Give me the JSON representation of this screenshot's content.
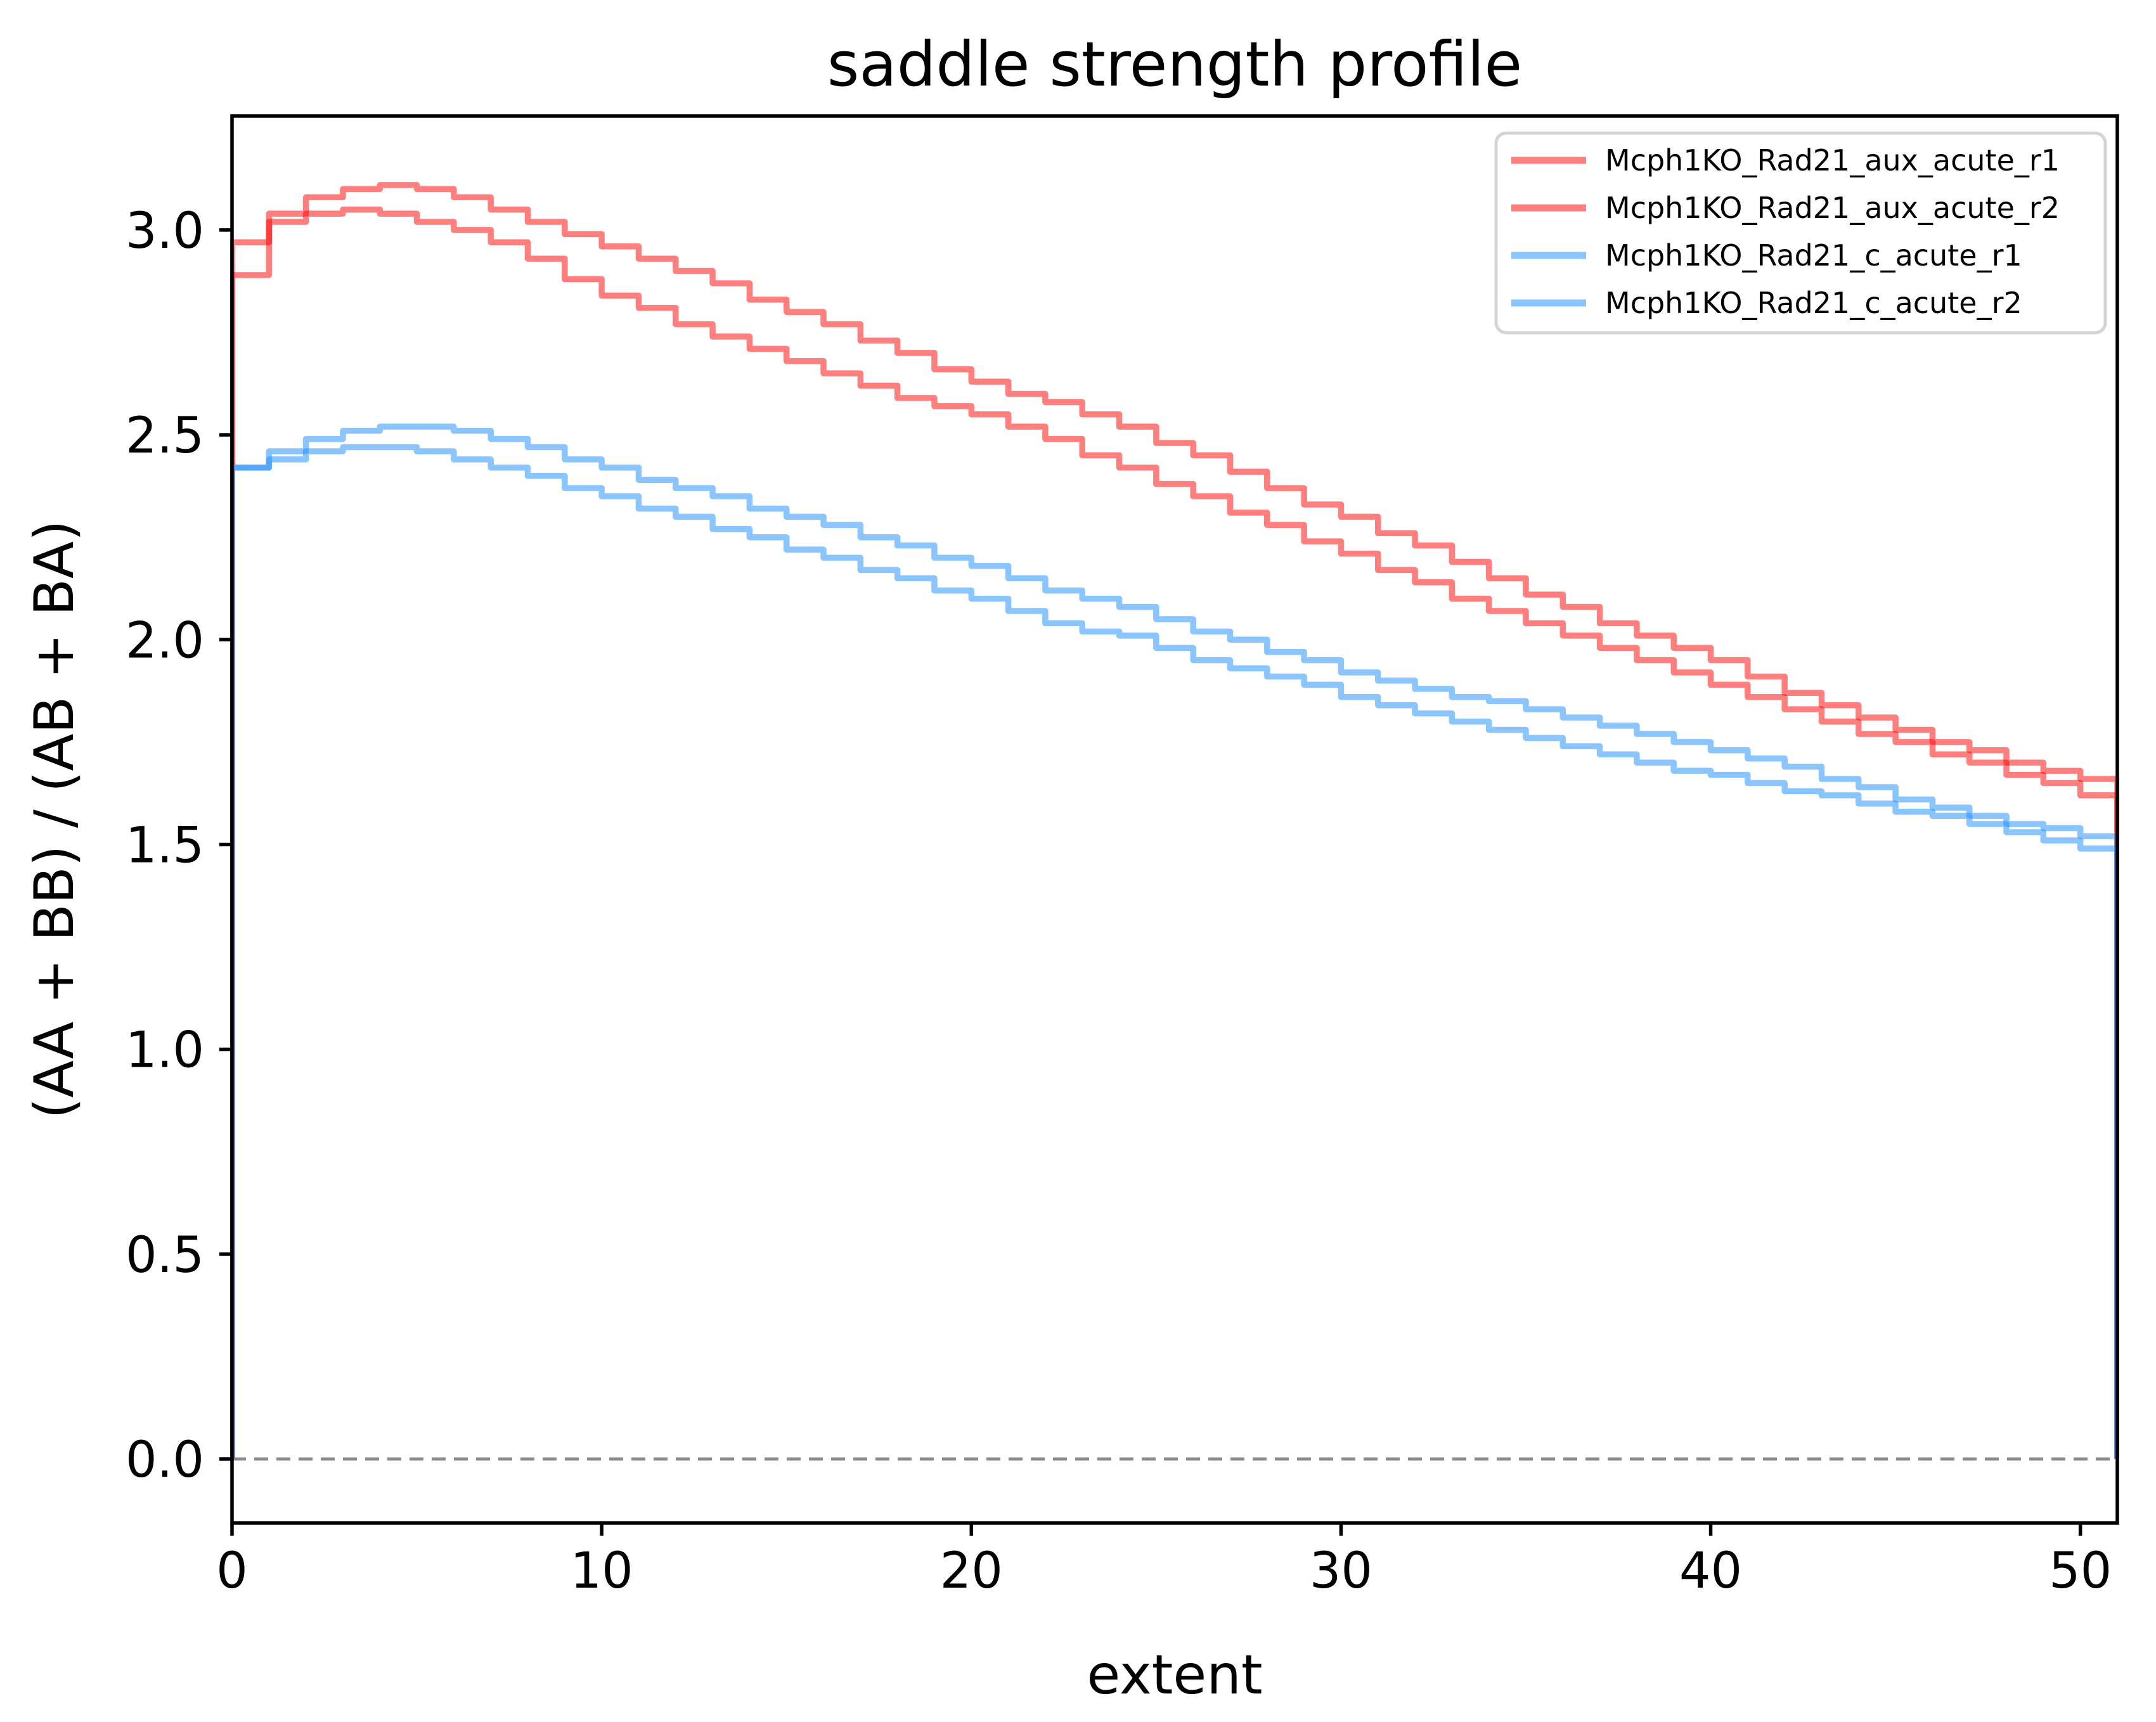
{
  "title": "saddle strength profile",
  "xlabel": "extent",
  "ylabel": "(AA + BB) / (AB + BA)",
  "colors": {
    "aux_red": "#FF0000",
    "aux_red_opacity": 0.5,
    "control_blue": "#1E90FF",
    "control_blue_opacity": 0.52,
    "zero_line_gray": "#8C8C8C",
    "legend_border": "#D4D4D4",
    "axis_black": "#000000"
  },
  "legend": {
    "entries": [
      {
        "label": "Mcph1KO_Rad21_aux_acute_r1",
        "color": "#FF0000",
        "opacity": 0.5
      },
      {
        "label": "Mcph1KO_Rad21_aux_acute_r2",
        "color": "#FF0000",
        "opacity": 0.5
      },
      {
        "label": "Mcph1KO_Rad21_c_acute_r1",
        "color": "#1E90FF",
        "opacity": 0.52
      },
      {
        "label": "Mcph1KO_Rad21_c_acute_r2",
        "color": "#1E90FF",
        "opacity": 0.52
      }
    ]
  },
  "chart_data": {
    "type": "line",
    "subtype": "step-post-histogram",
    "title": "saddle strength profile",
    "xlabel": "extent",
    "ylabel": "(AA + BB) / (AB + BA)",
    "xlim": [
      0,
      51
    ],
    "ylim": [
      -0.156,
      3.278
    ],
    "bin_width": 1,
    "grid": false,
    "legend_position": "upper right",
    "baseline": 0,
    "zero_line": {
      "y": 0,
      "style": "dashed",
      "color": "#8C8C8C"
    },
    "x_ticks": [
      0,
      10,
      20,
      30,
      40,
      50
    ],
    "y_ticks": [
      "0.0",
      "0.5",
      "1.0",
      "1.5",
      "2.0",
      "2.5",
      "3.0"
    ],
    "x": [
      0,
      1,
      2,
      3,
      4,
      5,
      6,
      7,
      8,
      9,
      10,
      11,
      12,
      13,
      14,
      15,
      16,
      17,
      18,
      19,
      20,
      21,
      22,
      23,
      24,
      25,
      26,
      27,
      28,
      29,
      30,
      31,
      32,
      33,
      34,
      35,
      36,
      37,
      38,
      39,
      40,
      41,
      42,
      43,
      44,
      45,
      46,
      47,
      48,
      49,
      50
    ],
    "series": [
      {
        "name": "Mcph1KO_Rad21_aux_acute_r1",
        "color": "#FF0000",
        "opacity": 0.5,
        "values": [
          2.97,
          3.04,
          3.08,
          3.1,
          3.11,
          3.1,
          3.08,
          3.05,
          3.02,
          2.99,
          2.96,
          2.93,
          2.9,
          2.87,
          2.83,
          2.8,
          2.77,
          2.73,
          2.7,
          2.66,
          2.63,
          2.6,
          2.58,
          2.55,
          2.52,
          2.48,
          2.45,
          2.41,
          2.37,
          2.33,
          2.3,
          2.26,
          2.23,
          2.19,
          2.15,
          2.11,
          2.08,
          2.04,
          2.01,
          1.98,
          1.95,
          1.91,
          1.87,
          1.84,
          1.81,
          1.78,
          1.75,
          1.73,
          1.7,
          1.68,
          1.66
        ]
      },
      {
        "name": "Mcph1KO_Rad21_aux_acute_r2",
        "color": "#FF0000",
        "opacity": 0.5,
        "values": [
          2.89,
          3.02,
          3.04,
          3.05,
          3.04,
          3.02,
          3.0,
          2.97,
          2.93,
          2.88,
          2.84,
          2.81,
          2.77,
          2.74,
          2.71,
          2.68,
          2.65,
          2.62,
          2.59,
          2.57,
          2.55,
          2.52,
          2.49,
          2.45,
          2.42,
          2.38,
          2.35,
          2.31,
          2.28,
          2.24,
          2.21,
          2.17,
          2.14,
          2.1,
          2.07,
          2.04,
          2.01,
          1.98,
          1.95,
          1.92,
          1.89,
          1.86,
          1.83,
          1.8,
          1.77,
          1.75,
          1.72,
          1.7,
          1.67,
          1.65,
          1.62
        ]
      },
      {
        "name": "Mcph1KO_Rad21_c_acute_r1",
        "color": "#1E90FF",
        "opacity": 0.52,
        "values": [
          2.42,
          2.46,
          2.49,
          2.51,
          2.52,
          2.52,
          2.51,
          2.49,
          2.47,
          2.44,
          2.42,
          2.39,
          2.37,
          2.35,
          2.32,
          2.3,
          2.28,
          2.25,
          2.23,
          2.2,
          2.18,
          2.15,
          2.12,
          2.1,
          2.08,
          2.05,
          2.02,
          2.0,
          1.97,
          1.95,
          1.92,
          1.9,
          1.88,
          1.86,
          1.85,
          1.83,
          1.81,
          1.79,
          1.77,
          1.75,
          1.73,
          1.71,
          1.69,
          1.66,
          1.64,
          1.61,
          1.59,
          1.57,
          1.55,
          1.54,
          1.52
        ]
      },
      {
        "name": "Mcph1KO_Rad21_c_acute_r2",
        "color": "#1E90FF",
        "opacity": 0.52,
        "values": [
          2.42,
          2.44,
          2.46,
          2.47,
          2.47,
          2.46,
          2.44,
          2.42,
          2.4,
          2.37,
          2.35,
          2.32,
          2.3,
          2.27,
          2.25,
          2.22,
          2.2,
          2.17,
          2.15,
          2.12,
          2.1,
          2.07,
          2.04,
          2.02,
          2.01,
          1.98,
          1.95,
          1.93,
          1.91,
          1.89,
          1.86,
          1.84,
          1.82,
          1.8,
          1.78,
          1.76,
          1.74,
          1.72,
          1.7,
          1.68,
          1.67,
          1.65,
          1.63,
          1.62,
          1.6,
          1.58,
          1.57,
          1.55,
          1.53,
          1.51,
          1.49
        ]
      }
    ]
  }
}
